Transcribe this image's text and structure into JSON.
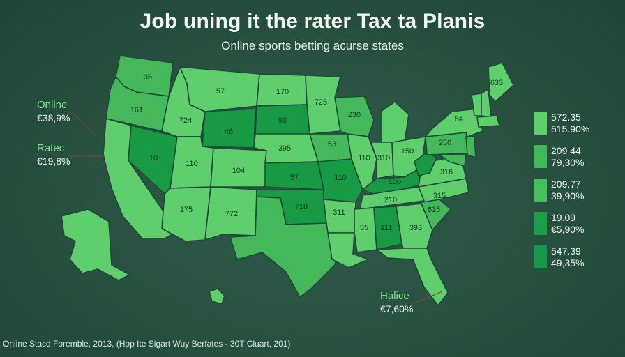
{
  "header": {
    "title": "Job uning it the rater Tax ta Planis",
    "subtitle": "Online sports betting acurse states"
  },
  "colors": {
    "background": "#27503f",
    "light": "#5fce6c",
    "medium": "#44b85a",
    "dark": "#179a43",
    "border": "#1f4a39"
  },
  "annotations": {
    "online": {
      "label": "Online",
      "value": "€38,9%"
    },
    "rated": {
      "label": "Ratec",
      "value": "€19,8%"
    },
    "halice": {
      "label": "Halice",
      "value": "€7,60%"
    }
  },
  "legend": [
    {
      "value": "572.35",
      "pct": "515.90%",
      "color": "#5fce6c"
    },
    {
      "value": "209 44",
      "pct": "79,30%",
      "color": "#3fb85a"
    },
    {
      "value": "209.77",
      "pct": "39,90%",
      "color": "#44bf5c"
    },
    {
      "value": "19.09",
      "pct": "€5,90%",
      "color": "#1a9e46"
    },
    {
      "value": "547.39",
      "pct": "49,35%",
      "color": "#17974a"
    }
  ],
  "states": [
    {
      "id": "WA",
      "label": "36",
      "shade": "medium"
    },
    {
      "id": "OR",
      "label": "161",
      "shade": "medium"
    },
    {
      "id": "CA",
      "label": "",
      "shade": "light"
    },
    {
      "id": "NV",
      "label": "10",
      "shade": "dark"
    },
    {
      "id": "ID",
      "label": "724",
      "shade": "light"
    },
    {
      "id": "MT",
      "label": "57",
      "shade": "light"
    },
    {
      "id": "WY",
      "label": "46",
      "shade": "dark"
    },
    {
      "id": "UT",
      "label": "110",
      "shade": "light"
    },
    {
      "id": "AZ",
      "label": "175",
      "shade": "light"
    },
    {
      "id": "CO",
      "label": "104",
      "shade": "light"
    },
    {
      "id": "NM",
      "label": "772",
      "shade": "light"
    },
    {
      "id": "ND",
      "label": "170",
      "shade": "light"
    },
    {
      "id": "SD",
      "label": "93",
      "shade": "dark"
    },
    {
      "id": "NE",
      "label": "395",
      "shade": "light"
    },
    {
      "id": "KS",
      "label": "57",
      "shade": "dark"
    },
    {
      "id": "OK",
      "label": "718",
      "shade": "dark"
    },
    {
      "id": "TX",
      "label": "",
      "shade": "medium"
    },
    {
      "id": "MN",
      "label": "725",
      "shade": "light"
    },
    {
      "id": "IA",
      "label": "53",
      "shade": "medium"
    },
    {
      "id": "MO",
      "label": "110",
      "shade": "dark"
    },
    {
      "id": "AR",
      "label": "311",
      "shade": "light"
    },
    {
      "id": "LA",
      "label": "",
      "shade": "light"
    },
    {
      "id": "WI",
      "label": "230",
      "shade": "medium"
    },
    {
      "id": "IL",
      "label": "110",
      "shade": "light"
    },
    {
      "id": "MI",
      "label": "",
      "shade": "light"
    },
    {
      "id": "IN",
      "label": "310",
      "shade": "light"
    },
    {
      "id": "OH",
      "label": "150",
      "shade": "light"
    },
    {
      "id": "KY",
      "label": "100",
      "shade": "dark"
    },
    {
      "id": "TN",
      "label": "210",
      "shade": "light"
    },
    {
      "id": "MS",
      "label": "55",
      "shade": "light"
    },
    {
      "id": "AL",
      "label": "111",
      "shade": "dark"
    },
    {
      "id": "GA",
      "label": "393",
      "shade": "light"
    },
    {
      "id": "FL",
      "label": "",
      "shade": "light"
    },
    {
      "id": "SC",
      "label": "615",
      "shade": "medium"
    },
    {
      "id": "NC",
      "label": "315",
      "shade": "light"
    },
    {
      "id": "VA",
      "label": "316",
      "shade": "light"
    },
    {
      "id": "WV",
      "label": "",
      "shade": "dark"
    },
    {
      "id": "PA",
      "label": "250",
      "shade": "medium"
    },
    {
      "id": "NY",
      "label": "84",
      "shade": "light"
    },
    {
      "id": "VT",
      "label": "",
      "shade": "light"
    },
    {
      "id": "NH",
      "label": "",
      "shade": "light"
    },
    {
      "id": "ME",
      "label": "633",
      "shade": "light"
    },
    {
      "id": "MA",
      "label": "",
      "shade": "light"
    },
    {
      "id": "NJ",
      "label": "",
      "shade": "medium"
    },
    {
      "id": "MD",
      "label": "",
      "shade": "medium"
    },
    {
      "id": "AK",
      "label": "",
      "shade": "light"
    },
    {
      "id": "HI",
      "label": "",
      "shade": "light"
    }
  ],
  "footer": {
    "text": "Online Stacd Foremble, 2013, (Hop Ite Sigart Wuy Berfates - 30T Cluart, 201)"
  }
}
